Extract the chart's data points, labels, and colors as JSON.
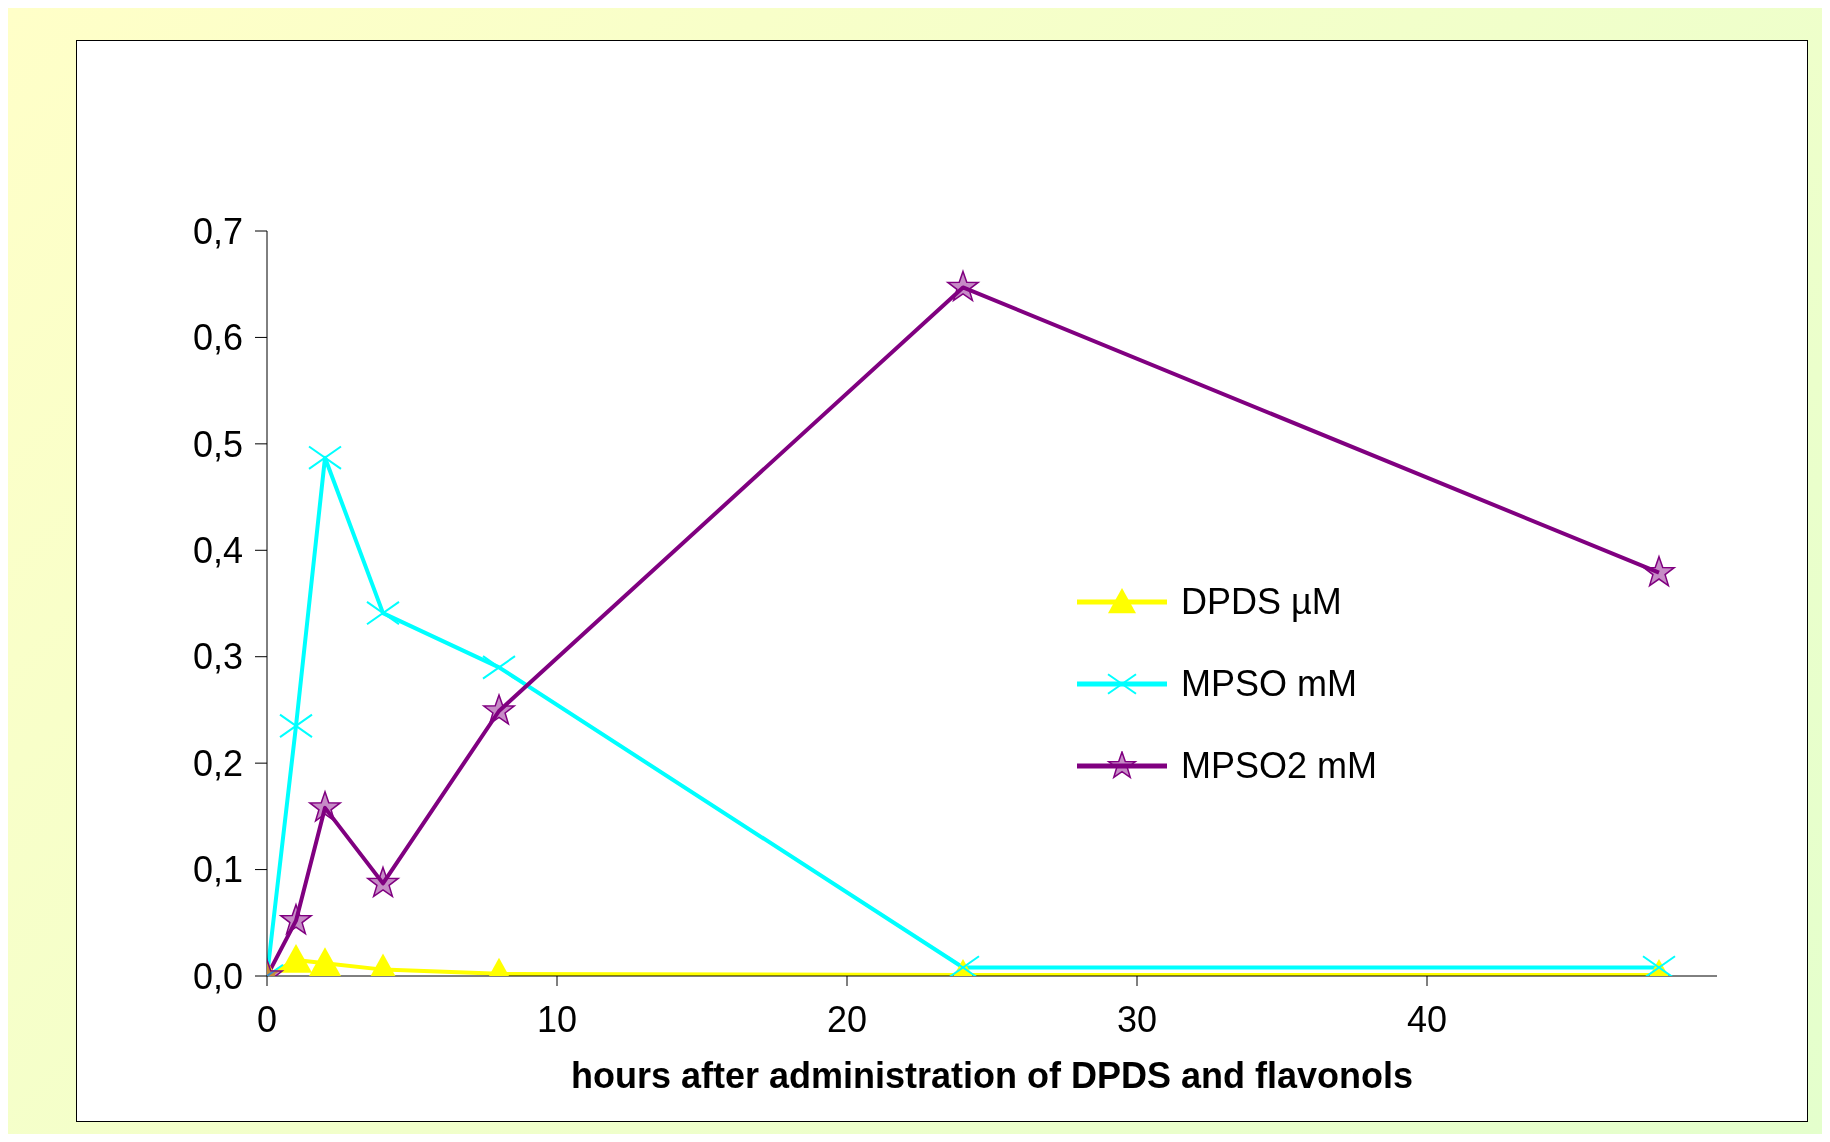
{
  "chart_data": {
    "type": "line",
    "xlabel": "hours after administration of DPDS and flavonols",
    "x": [
      0,
      1,
      2,
      4,
      8,
      24,
      48
    ],
    "series": [
      {
        "name": "DPDS µM",
        "color": "#ffff00",
        "marker": "triangle",
        "values": [
          0,
          0.015,
          0.012,
          0.006,
          0.002,
          0.001,
          0.001
        ]
      },
      {
        "name": "MPSO mM",
        "color": "#00ffff",
        "marker": "cross",
        "values": [
          0,
          0.235,
          0.487,
          0.341,
          0.29,
          0.008,
          0.008
        ]
      },
      {
        "name": "MPSO2 mM",
        "color": "#800080",
        "marker": "star",
        "values": [
          0,
          0.052,
          0.158,
          0.087,
          0.249,
          0.647,
          0.379
        ]
      }
    ],
    "xlim": [
      0,
      50
    ],
    "xticks": [
      0,
      10,
      20,
      30,
      40
    ],
    "ylim": [
      0,
      0.7
    ],
    "yticks": [
      {
        "value": 0,
        "label": "0,0"
      },
      {
        "value": 0.1,
        "label": "0,1"
      },
      {
        "value": 0.2,
        "label": "0,2"
      },
      {
        "value": 0.3,
        "label": "0,3"
      },
      {
        "value": 0.4,
        "label": "0,4"
      },
      {
        "value": 0.5,
        "label": "0,5"
      },
      {
        "value": 0.6,
        "label": "0,6"
      },
      {
        "value": 0.7,
        "label": "0,7"
      }
    ],
    "grid": false,
    "legend": "right",
    "line_style": "solid"
  }
}
